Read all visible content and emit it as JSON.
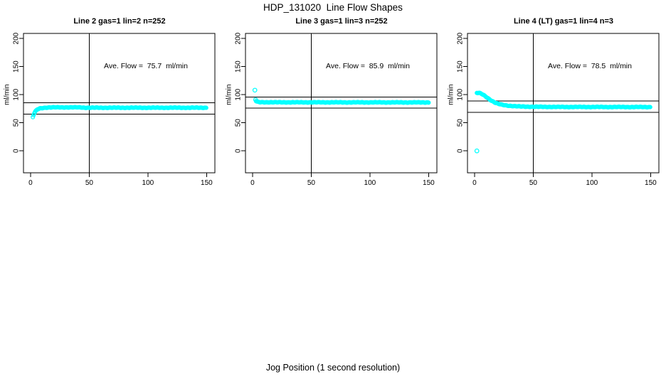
{
  "chart_data": {
    "type": "scatter",
    "title": "HDP_131020  Line Flow Shapes",
    "xlabel": "Jog Position (1 second resolution)",
    "x_ticks": [
      0,
      50,
      100,
      150
    ],
    "y_ticks": [
      0,
      50,
      100,
      150,
      200
    ],
    "x_range_shown": [
      -6,
      157
    ],
    "y_range_shown": [
      -39,
      209
    ],
    "point_color": "#00FFFF",
    "axis_color": "#000000",
    "legend_position": "none",
    "grid": false,
    "annotation_anchor": {
      "x": 98,
      "y": 150
    },
    "panels": [
      {
        "title": "Line 2 gas=1 lin=2 n=252",
        "ylabel": "ml/min",
        "ave_flow_label": "Ave. Flow =  75.7  ml/min",
        "ave_flow": 75.7,
        "ref_vline_x": 50,
        "ref_hlines_y": [
          85.7,
          65.7
        ],
        "x_start": 2,
        "x_end": 150,
        "series_keypoints": [
          [
            2,
            60
          ],
          [
            3,
            66
          ],
          [
            4,
            70
          ],
          [
            5,
            72
          ],
          [
            6,
            74
          ],
          [
            8,
            75.5
          ],
          [
            10,
            76.2
          ],
          [
            13,
            77
          ],
          [
            20,
            77.4
          ],
          [
            43,
            77.4
          ],
          [
            46,
            76.8
          ],
          [
            150,
            76.8
          ]
        ],
        "outliers": []
      },
      {
        "title": "Line 3 gas=1 lin=3 n=252",
        "ylabel": "ml/min",
        "ave_flow_label": "Ave. Flow =  85.9  ml/min",
        "ave_flow": 85.9,
        "ref_vline_x": 50,
        "ref_hlines_y": [
          95.9,
          75.9
        ],
        "x_start": 3,
        "x_end": 150,
        "series_keypoints": [
          [
            3,
            88.5
          ],
          [
            4,
            87.2
          ],
          [
            6,
            86.6
          ],
          [
            20,
            86.4
          ],
          [
            150,
            86.2
          ]
        ],
        "outliers": [
          [
            2,
            108
          ],
          [
            2.6,
            91
          ]
        ]
      },
      {
        "title": "Line 4 (LT) gas=1 lin=4 n=3",
        "ylabel": "ml/min",
        "ave_flow_label": "Ave. Flow =  78.5  ml/min",
        "ave_flow": 78.5,
        "ref_vline_x": 50,
        "ref_hlines_y": [
          88.5,
          68.5
        ],
        "x_start": 2,
        "x_end": 150,
        "series_keypoints": [
          [
            2,
            103
          ],
          [
            4,
            103
          ],
          [
            6,
            101.5
          ],
          [
            8,
            99
          ],
          [
            10,
            96
          ],
          [
            12,
            93
          ],
          [
            14,
            90
          ],
          [
            16,
            87.5
          ],
          [
            18,
            85.3
          ],
          [
            20,
            83.7
          ],
          [
            23,
            82.2
          ],
          [
            26,
            81.1
          ],
          [
            30,
            80.2
          ],
          [
            35,
            79.4
          ],
          [
            40,
            78.9
          ],
          [
            50,
            78.5
          ],
          [
            70,
            78.2
          ],
          [
            150,
            78
          ]
        ],
        "outliers": [
          [
            2,
            0
          ]
        ]
      }
    ]
  }
}
